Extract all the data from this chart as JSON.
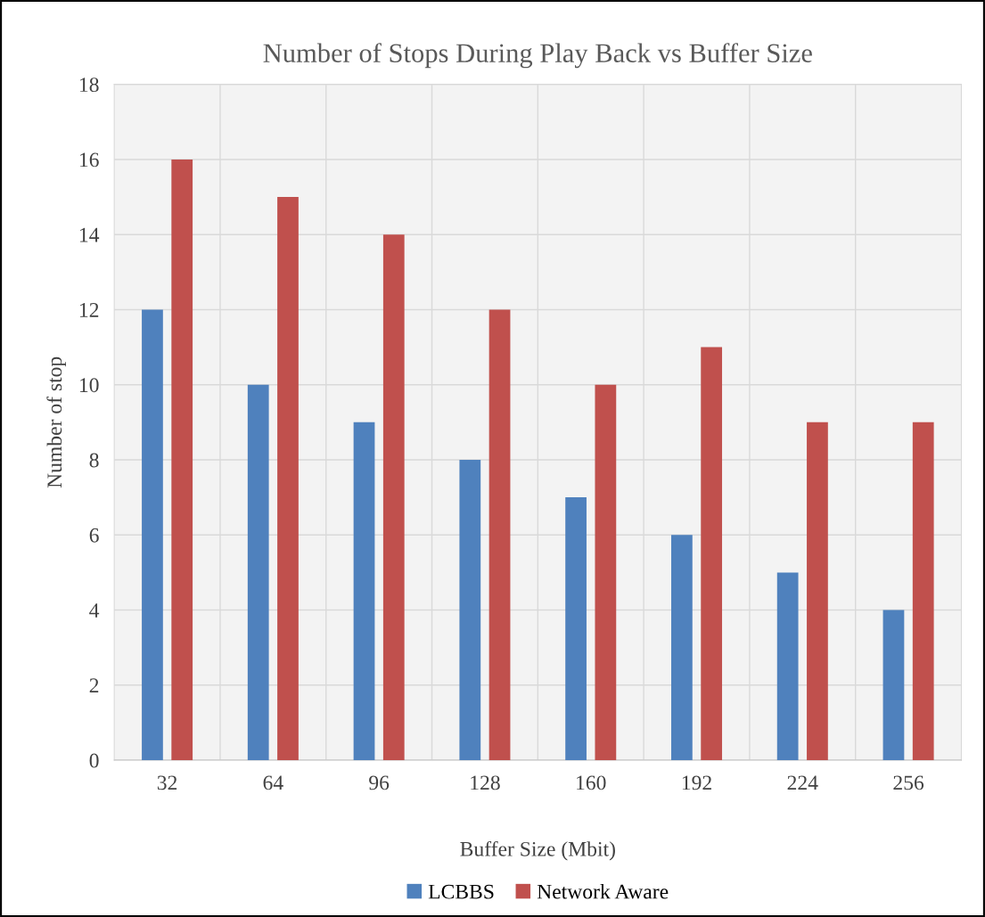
{
  "chart_data": {
    "type": "bar",
    "title": "Number of Stops During Play Back vs Buffer Size",
    "xlabel": "Buffer Size (Mbit)",
    "ylabel": "Number of stop",
    "categories": [
      "32",
      "64",
      "96",
      "128",
      "160",
      "192",
      "224",
      "256"
    ],
    "series": [
      {
        "name": "LCBBS",
        "color": "#4f81bd",
        "values": [
          12,
          10,
          9,
          8,
          7,
          6,
          5,
          4
        ]
      },
      {
        "name": "Network Aware",
        "color": "#c0504d",
        "values": [
          16,
          15,
          14,
          12,
          10,
          11,
          9,
          9
        ]
      }
    ],
    "ylim": [
      0,
      18
    ],
    "yticks": [
      0,
      2,
      4,
      6,
      8,
      10,
      12,
      14,
      16,
      18
    ],
    "grid": true,
    "legend": "bottom"
  }
}
